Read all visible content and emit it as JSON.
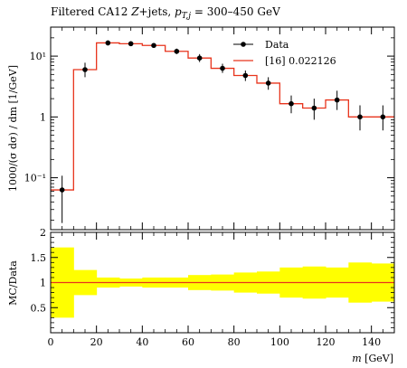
{
  "colors": {
    "mc_line": "#e8341c",
    "band": "#ffff00",
    "data_marker": "#000000",
    "unity_line": "#e8341c"
  },
  "chart_data": [
    {
      "type": "line",
      "title": "Filtered CA12 Z+jets, p_T,j = 300–450 GeV",
      "title_parts": {
        "prefix": "Filtered CA12 ",
        "process": "Z",
        "suffix": "+jets, ",
        "var": "p",
        "sub": "T,j",
        "range": " = 300–450 GeV"
      },
      "xlabel": "m [GeV]",
      "ylabel": "1000/(σ dσ) / dm [1/GeV]",
      "yscale": "log",
      "xlim": [
        0,
        150
      ],
      "ylim": [
        0.014,
        30
      ],
      "y_ticks": [
        {
          "value": 0.1,
          "label": "10⁻¹"
        },
        {
          "value": 1,
          "label": "1"
        },
        {
          "value": 10,
          "label": "10¹"
        }
      ],
      "legend_position": "top-right",
      "series": [
        {
          "name": "Data",
          "style": "points-with-errors",
          "x": [
            5,
            15,
            25,
            35,
            45,
            55,
            65,
            75,
            85,
            95,
            105,
            115,
            125,
            135,
            145
          ],
          "y": [
            0.063,
            6.0,
            16.5,
            16.0,
            15.0,
            12.0,
            9.3,
            6.3,
            4.8,
            3.6,
            1.65,
            1.4,
            1.9,
            1.0,
            1.0
          ],
          "y_err_low": [
            0.045,
            1.5,
            1.5,
            1.3,
            1.3,
            1.2,
            1.3,
            1.0,
            0.9,
            0.8,
            0.5,
            0.5,
            0.6,
            0.4,
            0.4
          ],
          "y_err_high": [
            0.045,
            1.8,
            1.6,
            1.4,
            1.4,
            1.3,
            1.5,
            1.2,
            1.0,
            0.9,
            0.6,
            0.6,
            0.8,
            0.55,
            0.55
          ]
        },
        {
          "name": "[16] 0.022126",
          "style": "histogram",
          "bin_edges": [
            0,
            10,
            20,
            30,
            40,
            50,
            60,
            70,
            80,
            90,
            100,
            110,
            120,
            130,
            140,
            150
          ],
          "y": [
            0.063,
            6.0,
            16.5,
            16.0,
            15.0,
            12.0,
            9.3,
            6.3,
            4.8,
            3.6,
            1.65,
            1.4,
            1.9,
            1.0,
            1.0
          ]
        }
      ]
    },
    {
      "type": "area",
      "xlabel": "m [GeV]",
      "ylabel": "MC/Data",
      "xlim": [
        0,
        150
      ],
      "ylim": [
        0,
        2
      ],
      "x_ticks": [
        0,
        20,
        40,
        60,
        80,
        100,
        120,
        140
      ],
      "y_ticks": [
        0.5,
        1,
        1.5,
        2
      ],
      "bin_edges": [
        0,
        10,
        20,
        30,
        40,
        50,
        60,
        70,
        80,
        90,
        100,
        110,
        120,
        130,
        140,
        150
      ],
      "ratio": [
        1,
        1,
        1,
        1,
        1,
        1,
        1,
        1,
        1,
        1,
        1,
        1,
        1,
        1,
        1
      ],
      "band_low": [
        0.3,
        0.75,
        0.9,
        0.92,
        0.9,
        0.9,
        0.85,
        0.84,
        0.8,
        0.78,
        0.7,
        0.68,
        0.7,
        0.6,
        0.62
      ],
      "band_high": [
        1.7,
        1.25,
        1.1,
        1.08,
        1.1,
        1.1,
        1.15,
        1.16,
        1.2,
        1.22,
        1.3,
        1.32,
        1.3,
        1.4,
        1.38
      ]
    }
  ]
}
